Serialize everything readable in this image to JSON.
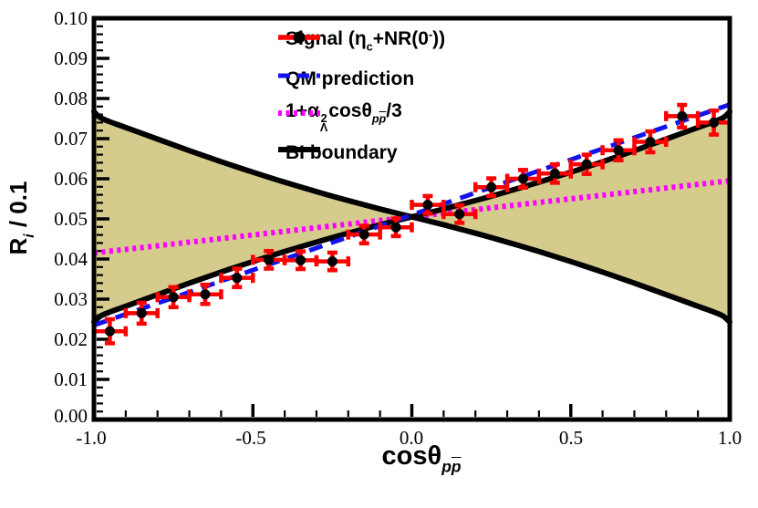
{
  "figure": {
    "background": "#ffffff"
  },
  "axes": {
    "x": {
      "title_main": "cosθ",
      "title_sub_p1": "p",
      "title_sub_p2": "p",
      "label_plain": "cosθ_pp̄",
      "min": -1.0,
      "max": 1.0,
      "tick_labels": [
        "-1.0",
        "-0.5",
        "0.0",
        "0.5",
        "1.0"
      ],
      "tick_values": [
        -1.0,
        -0.5,
        0.0,
        0.5,
        1.0
      ],
      "minor_step": 0.1
    },
    "y": {
      "title_main": "R",
      "title_sub": "i",
      "title_rest": " / 0.1",
      "label_plain": "R_i / 0.1",
      "min": 0.0,
      "max": 0.1,
      "tick_labels": [
        "0.10",
        "0.09",
        "0.08",
        "0.07",
        "0.06",
        "0.05",
        "0.04",
        "0.03",
        "0.02",
        "0.01",
        "0.00"
      ],
      "tick_values": [
        0.1,
        0.09,
        0.08,
        0.07,
        0.06,
        0.05,
        0.04,
        0.03,
        0.02,
        0.01,
        0.0
      ],
      "minor_step": 0.002
    }
  },
  "legend": {
    "items": [
      {
        "key": "signal",
        "marker": "red-line-black-dot",
        "parts": {
          "p1": "Signal (",
          "eta": "η",
          "sub_c": "c",
          "p2": "+NR(0",
          "sup_minus": "-",
          "p3": "))"
        },
        "label_plain": "Signal (η_c+NR(0^-))"
      },
      {
        "key": "qm",
        "marker": "blue-dashed-line",
        "label": "QM prediction"
      },
      {
        "key": "alpha",
        "marker": "magenta-dotted-line",
        "parts": {
          "p1": "1+",
          "alpha": "α",
          "sup2": "2",
          "subL": "Λ",
          "p2": "cosθ",
          "sub_p1": "p",
          "sub_p2": "p",
          "p3": "/3"
        },
        "label_plain": "1+α_Λ^2 cosθ_pp̄ /3"
      },
      {
        "key": "bi",
        "marker": "black-solid-line",
        "label": "BI boundary"
      }
    ]
  },
  "chart_data": {
    "type": "scatter",
    "title": "",
    "xlabel": "cosθ_pp̄",
    "ylabel": "R_i / 0.1",
    "xlim": [
      -1.0,
      1.0
    ],
    "ylim": [
      0.0,
      0.1
    ],
    "grid": false,
    "legend_position": "top-center-inside",
    "signal_points": {
      "name": "Signal (η_c+NR(0^-))",
      "x": [
        -0.95,
        -0.85,
        -0.75,
        -0.65,
        -0.55,
        -0.45,
        -0.35,
        -0.25,
        -0.15,
        -0.05,
        0.05,
        0.15,
        0.25,
        0.35,
        0.45,
        0.55,
        0.65,
        0.75,
        0.85,
        0.95
      ],
      "y": [
        0.022,
        0.0265,
        0.0305,
        0.0312,
        0.0353,
        0.0398,
        0.0397,
        0.0394,
        0.0461,
        0.0479,
        0.0535,
        0.0512,
        0.0579,
        0.06,
        0.0613,
        0.0636,
        0.0671,
        0.0692,
        0.0756,
        0.074
      ],
      "xerr": 0.05,
      "yerr": [
        0.003,
        0.0026,
        0.0025,
        0.0024,
        0.0023,
        0.0022,
        0.0022,
        0.0022,
        0.0022,
        0.0022,
        0.0022,
        0.0022,
        0.0022,
        0.0022,
        0.0023,
        0.0024,
        0.0025,
        0.0026,
        0.0028,
        0.003
      ]
    },
    "qm_prediction": {
      "name": "QM prediction",
      "x": [
        -1.0,
        1.0
      ],
      "y": [
        0.0235,
        0.0785
      ]
    },
    "alpha_curve": {
      "name": "1+α_Λ^2 cosθ_pp̄ /3",
      "x": [
        -1.0,
        1.0
      ],
      "y": [
        0.0415,
        0.0595
      ]
    },
    "bi_boundary": {
      "name": "BI boundary",
      "center": 0.0505,
      "amplitude": 0.0262,
      "shape_x": [
        0,
        0.1,
        0.2,
        0.3,
        0.4,
        0.5,
        0.6,
        0.7,
        0.8,
        0.9,
        0.95,
        0.98,
        1.0
      ],
      "shape_g": [
        0,
        0.075,
        0.155,
        0.24,
        0.33,
        0.425,
        0.525,
        0.63,
        0.74,
        0.85,
        0.905,
        0.945,
        1.0
      ]
    },
    "colors": {
      "signal": "#ff0000",
      "marker": "#000000",
      "qm": "#1212ee",
      "alpha": "#ff00ff",
      "boundary": "#000000",
      "band_fill": "#d5cb8d",
      "frame": "#000000"
    }
  }
}
